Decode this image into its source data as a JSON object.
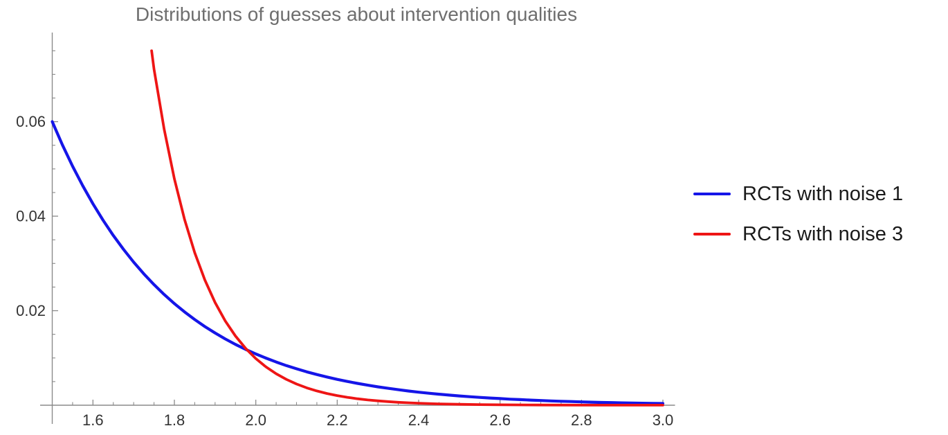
{
  "chart_data": {
    "type": "line",
    "title": "Distributions of guesses about intervention qualities",
    "xlabel": "",
    "ylabel": "",
    "xlim": [
      1.5,
      3.0
    ],
    "ylim": [
      0,
      0.0788
    ],
    "grid": false,
    "legend_position": "right-center",
    "x_major_ticks": {
      "values": [
        1.6,
        1.8,
        2.0,
        2.2,
        2.4,
        2.6,
        2.8,
        3.0
      ],
      "labels": [
        "1.6",
        "1.8",
        "2.0",
        "2.2",
        "2.4",
        "2.6",
        "2.8",
        "3.0"
      ]
    },
    "x_minor_ticks": [
      1.55,
      1.65,
      1.7,
      1.75,
      1.85,
      1.9,
      1.95,
      2.05,
      2.1,
      2.15,
      2.25,
      2.3,
      2.35,
      2.45,
      2.5,
      2.55,
      2.65,
      2.7,
      2.75,
      2.85,
      2.9,
      2.95
    ],
    "y_major_ticks": {
      "values": [
        0.02,
        0.04,
        0.06
      ],
      "labels": [
        "0.02",
        "0.04",
        "0.06"
      ]
    },
    "y_minor_ticks": [
      0.005,
      0.01,
      0.015,
      0.025,
      0.03,
      0.035,
      0.045,
      0.05,
      0.055,
      0.065,
      0.07,
      0.075
    ],
    "series": [
      {
        "name": "RCTs with noise 1",
        "color": "#1515e8",
        "x": [
          1.5,
          1.525,
          1.55,
          1.575,
          1.6,
          1.625,
          1.65,
          1.675,
          1.7,
          1.725,
          1.75,
          1.775,
          1.8,
          1.825,
          1.85,
          1.875,
          1.9,
          1.925,
          1.95,
          1.975,
          2.0,
          2.025,
          2.05,
          2.075,
          2.1,
          2.125,
          2.15,
          2.175,
          2.2,
          2.225,
          2.25,
          2.275,
          2.3,
          2.325,
          2.35,
          2.375,
          2.4,
          2.425,
          2.45,
          2.475,
          2.5,
          2.525,
          2.55,
          2.575,
          2.6,
          2.625,
          2.65,
          2.675,
          2.7,
          2.725,
          2.75,
          2.775,
          2.8,
          2.825,
          2.85,
          2.875,
          2.9,
          2.925,
          2.95,
          2.975,
          3.0
        ],
        "y": [
          0.06,
          0.05508,
          0.05057,
          0.04643,
          0.04262,
          0.03913,
          0.03592,
          0.03298,
          0.03027,
          0.02779,
          0.02552,
          0.02342,
          0.0215,
          0.01974,
          0.01813,
          0.01664,
          0.01528,
          0.01402,
          0.01287,
          0.01182,
          0.01085,
          0.00996,
          0.00914,
          0.00839,
          0.00771,
          0.00707,
          0.00649,
          0.00596,
          0.00547,
          0.00502,
          0.00461,
          0.00424,
          0.00389,
          0.00357,
          0.00328,
          0.00301,
          0.00276,
          0.00254,
          0.00233,
          0.00214,
          0.00196,
          0.0018,
          0.00166,
          0.00152,
          0.0014,
          0.00128,
          0.00118,
          0.00108,
          0.00099,
          0.00091,
          0.00084,
          0.00077,
          0.00071,
          0.00065,
          0.00059,
          0.00055,
          0.0005,
          0.00046,
          0.00042,
          0.00039,
          0.00036
        ]
      },
      {
        "name": "RCTs with noise 3",
        "color": "#ee1515",
        "x": [
          1.744,
          1.75,
          1.775,
          1.8,
          1.825,
          1.85,
          1.875,
          1.9,
          1.925,
          1.95,
          1.975,
          2.0,
          2.025,
          2.05,
          2.075,
          2.1,
          2.125,
          2.15,
          2.175,
          2.2,
          2.225,
          2.25,
          2.275,
          2.3,
          2.325,
          2.35,
          2.375,
          2.4,
          2.45,
          2.5,
          2.55,
          2.6,
          2.7,
          2.8,
          2.9,
          3.0
        ],
        "y": [
          0.075,
          0.07108,
          0.05834,
          0.04789,
          0.03931,
          0.03227,
          0.02649,
          0.02174,
          0.01784,
          0.01465,
          0.01202,
          0.00987,
          0.0081,
          0.00665,
          0.00546,
          0.00448,
          0.00368,
          0.00302,
          0.00248,
          0.00203,
          0.00167,
          0.00137,
          0.00112,
          0.00092,
          0.00076,
          0.00062,
          0.00051,
          0.00042,
          0.00028,
          0.00019,
          0.00013,
          9e-05,
          4e-05,
          2e-05,
          1e-05,
          1e-05
        ]
      }
    ],
    "annotations": {
      "curve_crossing_approx": {
        "x": 1.97,
        "y": 0.012
      }
    }
  },
  "colors": {
    "background": "#ffffff",
    "axis": "#8a8a8a",
    "tick_label": "#333333",
    "title": "#6e6e6e",
    "legend_text": "#1a1a1a"
  }
}
